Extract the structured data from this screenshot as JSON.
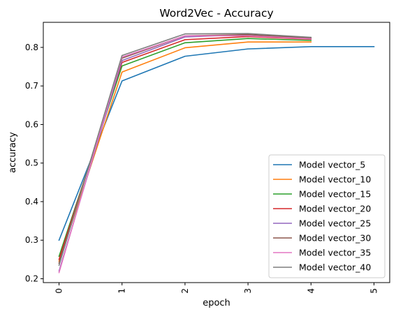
{
  "chart_data": {
    "type": "line",
    "title": "Word2Vec - Accuracy",
    "xlabel": "epoch",
    "ylabel": "accuracy",
    "xlim": [
      -0.25,
      5.25
    ],
    "ylim": [
      0.19,
      0.865
    ],
    "xticks": [
      "0",
      "1",
      "2",
      "3",
      "4",
      "5"
    ],
    "yticks": [
      "0.2",
      "0.3",
      "0.4",
      "0.5",
      "0.6",
      "0.7",
      "0.8"
    ],
    "grid": false,
    "legend_position": "lower-right",
    "series": [
      {
        "name": "Model vector_5",
        "color": "#1f77b4",
        "x": [
          0,
          1,
          2,
          3,
          4,
          5
        ],
        "y": [
          0.3,
          0.713,
          0.777,
          0.796,
          0.802,
          0.802
        ]
      },
      {
        "name": "Model vector_10",
        "color": "#ff7f0e",
        "x": [
          0,
          1,
          2,
          3,
          4
        ],
        "y": [
          0.245,
          0.736,
          0.799,
          0.814,
          0.814
        ]
      },
      {
        "name": "Model vector_15",
        "color": "#2ca02c",
        "x": [
          0,
          1,
          2,
          3,
          4
        ],
        "y": [
          0.258,
          0.752,
          0.812,
          0.823,
          0.818
        ]
      },
      {
        "name": "Model vector_20",
        "color": "#d62728",
        "x": [
          0,
          1,
          2,
          3,
          4
        ],
        "y": [
          0.25,
          0.761,
          0.82,
          0.828,
          0.821
        ]
      },
      {
        "name": "Model vector_25",
        "color": "#9467bd",
        "x": [
          0,
          1,
          2,
          3,
          4
        ],
        "y": [
          0.22,
          0.766,
          0.827,
          0.833,
          0.824
        ]
      },
      {
        "name": "Model vector_30",
        "color": "#8c564b",
        "x": [
          0,
          1,
          2,
          3,
          4
        ],
        "y": [
          0.24,
          0.772,
          0.83,
          0.833,
          0.824
        ]
      },
      {
        "name": "Model vector_35",
        "color": "#e377c2",
        "x": [
          0,
          1,
          2,
          3,
          4
        ],
        "y": [
          0.216,
          0.775,
          0.83,
          0.83,
          0.822
        ]
      },
      {
        "name": "Model vector_40",
        "color": "#7f7f7f",
        "x": [
          0,
          1,
          2,
          3,
          4
        ],
        "y": [
          0.235,
          0.779,
          0.835,
          0.836,
          0.826
        ]
      }
    ]
  }
}
